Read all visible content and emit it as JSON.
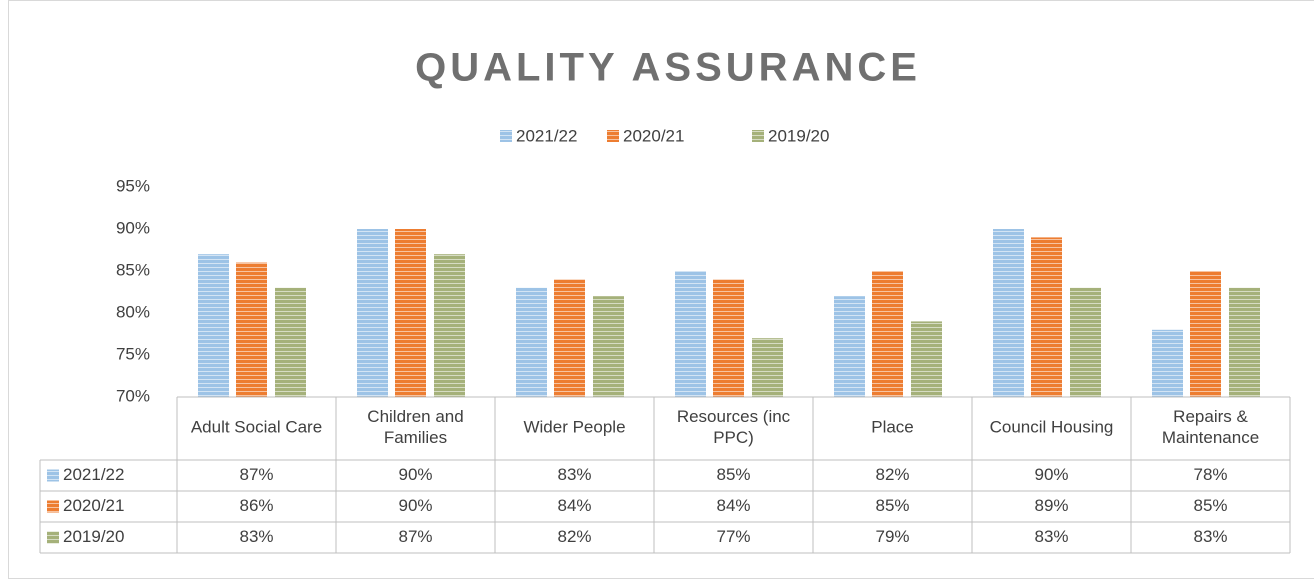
{
  "chart_data": {
    "type": "bar",
    "title": "QUALITY ASSURANCE",
    "categories": [
      "Adult Social Care",
      "Children and Families",
      "Wider People",
      "Resources (inc PPC)",
      "Place",
      "Council Housing",
      "Repairs & Maintenance"
    ],
    "series": [
      {
        "name": "2021/22",
        "color": "#9dc3e6",
        "values": [
          87,
          90,
          83,
          85,
          82,
          90,
          78
        ],
        "value_labels": [
          "87%",
          "90%",
          "83%",
          "85%",
          "82%",
          "90%",
          "78%"
        ]
      },
      {
        "name": "2020/21",
        "color": "#ed7d31",
        "values": [
          86,
          90,
          84,
          84,
          85,
          89,
          85
        ],
        "value_labels": [
          "86%",
          "90%",
          "84%",
          "84%",
          "85%",
          "89%",
          "85%"
        ]
      },
      {
        "name": "2019/20",
        "color": "#a5b17a",
        "values": [
          83,
          87,
          82,
          77,
          79,
          83,
          83
        ],
        "value_labels": [
          "83%",
          "87%",
          "82%",
          "77%",
          "79%",
          "83%",
          "83%"
        ]
      }
    ],
    "ylim": [
      70,
      95
    ],
    "yticks": [
      {
        "value": 70,
        "label": "70%"
      },
      {
        "value": 75,
        "label": "75%"
      },
      {
        "value": 80,
        "label": "80%"
      },
      {
        "value": 85,
        "label": "85%"
      },
      {
        "value": 90,
        "label": "90%"
      },
      {
        "value": 95,
        "label": "95%"
      }
    ],
    "legend": "top",
    "grid": false
  }
}
